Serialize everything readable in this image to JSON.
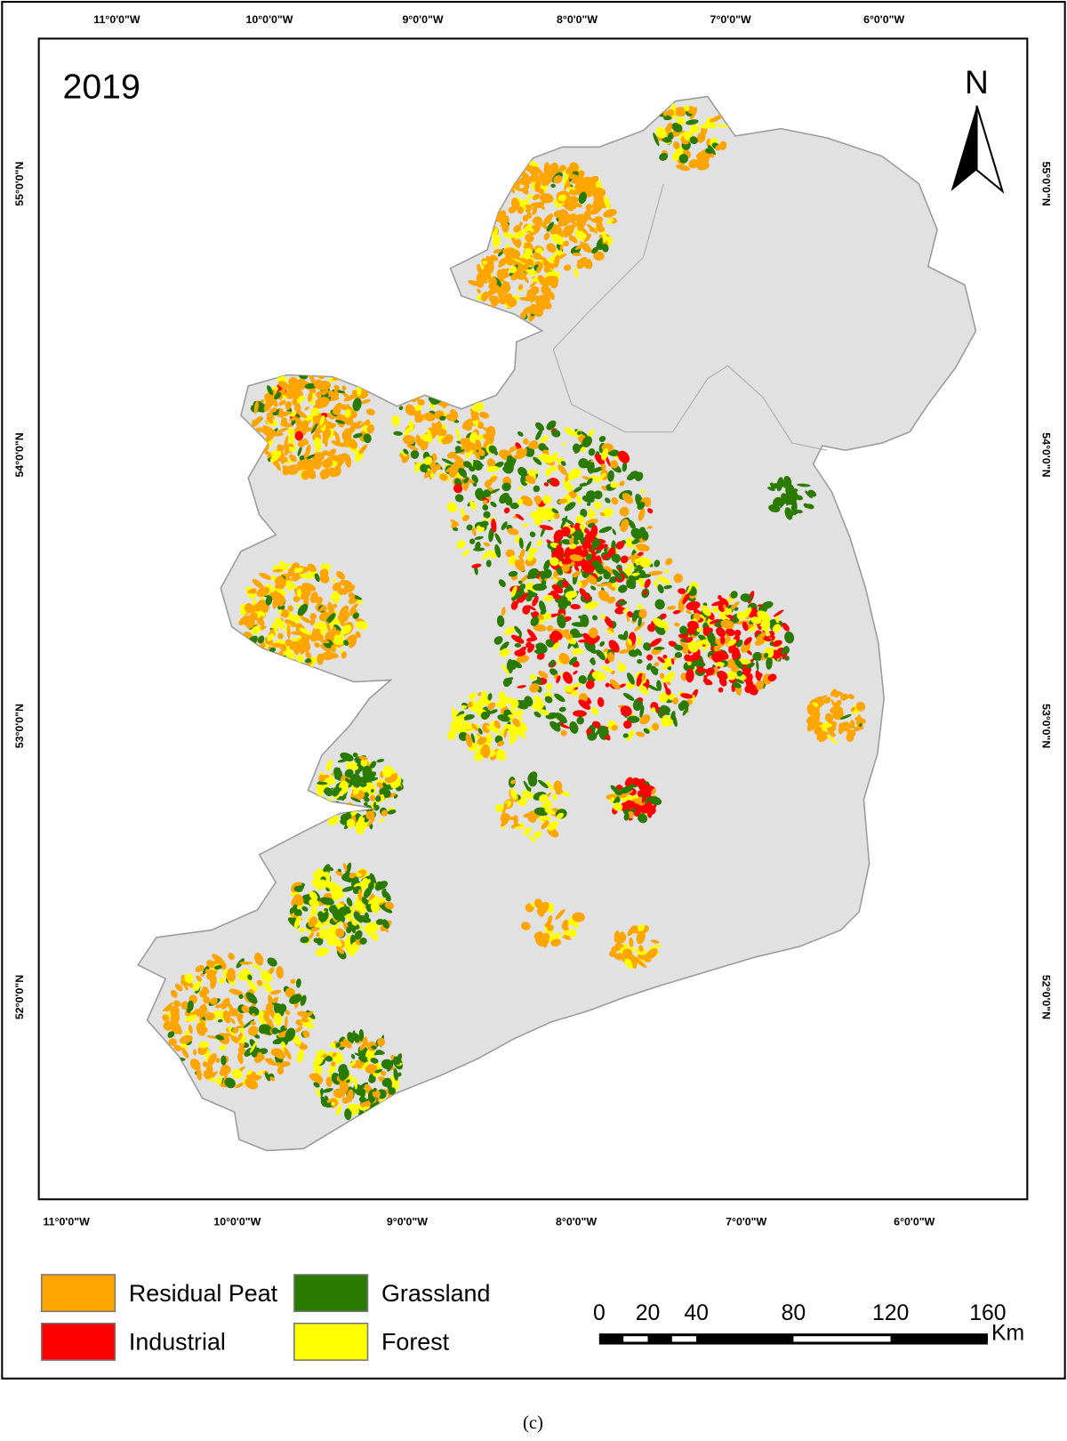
{
  "title": "2019",
  "top_longitude_labels": [
    "11°0'0\"W",
    "10°0'0\"W",
    "9°0'0\"W",
    "8°0'0\"W",
    "7°0'0\"W",
    "6°0'0\"W"
  ],
  "bottom_longitude_labels": [
    "11°0'0\"W",
    "10°0'0\"W",
    "9°0'0\"W",
    "8°0'0\"W",
    "7°0'0\"W",
    "6°0'0\"W"
  ],
  "left_latitude_labels": [
    "55°0'0\"N",
    "54°0'0\"N",
    "53°0'0\"N",
    "52°0'0\"N"
  ],
  "right_latitude_labels": [
    "55°0'0\"N",
    "54°0'0\"N",
    "53°0'0\"N",
    "52°0'0\"N"
  ],
  "north_label": "N",
  "legend": [
    {
      "label": "Residual Peat",
      "color": "#ffa500"
    },
    {
      "label": "Industrial",
      "color": "#ff0000"
    },
    {
      "label": "Grassland",
      "color": "#2a7a00"
    },
    {
      "label": "Forest",
      "color": "#ffff00"
    }
  ],
  "scale_bar": {
    "labels": [
      0,
      20,
      40,
      80,
      120,
      160
    ],
    "unit": "Km"
  },
  "caption": "(c)"
}
